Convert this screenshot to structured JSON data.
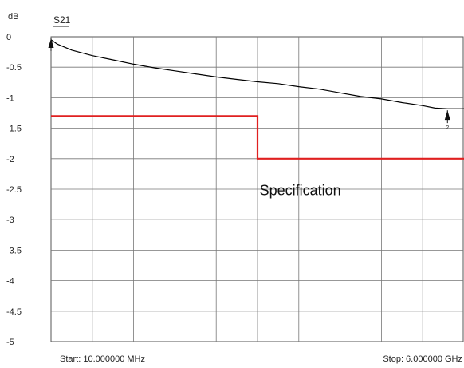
{
  "chart_data": {
    "type": "line",
    "unit_label": "dB",
    "trace_label": "S21",
    "ylim": [
      -5,
      0
    ],
    "yticks": [
      "0",
      "-0.5",
      "-1",
      "-1.5",
      "-2",
      "-2.5",
      "-3",
      "-3.5",
      "-4",
      "-4.5",
      "-5"
    ],
    "ytick_values": [
      0,
      -0.5,
      -1,
      -1.5,
      -2,
      -2.5,
      -3,
      -3.5,
      -4,
      -4.5,
      -5
    ],
    "x_divisions": 10,
    "grid": true,
    "start_label": "Start: 10.000000 MHz",
    "stop_label": "Stop: 6.000000 GHz",
    "series": [
      {
        "key": "s21",
        "color": "#000000",
        "x": [
          0,
          0.15,
          0.5,
          1,
          1.5,
          2,
          2.5,
          3,
          3.5,
          4,
          4.5,
          5,
          5.5,
          6,
          6.5,
          7,
          7.5,
          8,
          8.5,
          9,
          9.3,
          9.6,
          10
        ],
        "y": [
          -0.05,
          -0.12,
          -0.22,
          -0.31,
          -0.38,
          -0.45,
          -0.51,
          -0.56,
          -0.61,
          -0.66,
          -0.7,
          -0.74,
          -0.77,
          -0.82,
          -0.86,
          -0.92,
          -0.98,
          -1.02,
          -1.08,
          -1.13,
          -1.17,
          -1.18,
          -1.18
        ]
      },
      {
        "key": "spec",
        "color": "#e02020",
        "x": [
          0,
          5,
          5,
          10
        ],
        "y": [
          -1.3,
          -1.3,
          -2.0,
          -2.0
        ]
      }
    ],
    "markers": [
      {
        "x": 0,
        "y": 0,
        "label": ""
      },
      {
        "x": 9.6,
        "y": -1.18,
        "label": "2"
      }
    ],
    "annotations": [
      {
        "text": "Specification",
        "x": 5.05,
        "y": -2.6
      }
    ]
  }
}
